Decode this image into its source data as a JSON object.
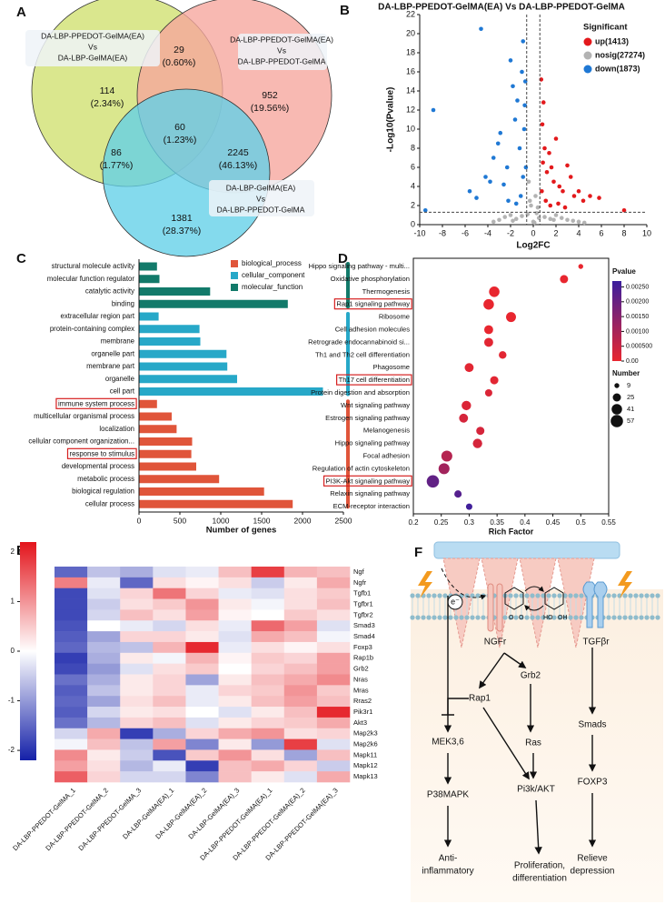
{
  "chart_data": [
    {
      "type": "venn",
      "panel": "A",
      "sets": [
        {
          "label": [
            "DA-LBP-PPEDOT-GelMA(EA)",
            "Vs",
            "DA-LBP-GelMA(EA)"
          ],
          "color": "#cfe06e"
        },
        {
          "label": [
            "DA-LBP-PPEDOT-GelMA(EA)",
            "Vs",
            "DA-LBP-PPEDOT-GelMA"
          ],
          "color": "#f6a59c"
        },
        {
          "label": [
            "DA-LBP-GelMA(EA)",
            "Vs",
            "DA-LBP-PPEDOT-GelMA"
          ],
          "color": "#62cfe8"
        }
      ],
      "values": [
        114,
        29,
        952,
        60,
        86,
        2245,
        1381
      ],
      "percents": [
        2.34,
        0.6,
        19.56,
        1.23,
        1.77,
        46.13,
        28.37
      ],
      "percent_labels": [
        "(2.34%)",
        "(0.60%)",
        "(19.56%)",
        "(1.23%)",
        "(1.77%)",
        "(46.13%)",
        "(28.37%)"
      ]
    },
    {
      "type": "scatter",
      "panel": "B",
      "title": "DA-LBP-PPEDOT-GelMA(EA) Vs DA-LBP-PPEDOT-GelMA",
      "x_label": "Log2FC",
      "y_label": "-Log10(Pvalue)",
      "xlim": [
        -10,
        10
      ],
      "xticks": [
        -10,
        -8,
        -6,
        -4,
        -2,
        0,
        2,
        4,
        6,
        8,
        10
      ],
      "ylim": [
        0,
        22
      ],
      "yticks": [
        0,
        2,
        4,
        6,
        8,
        10,
        12,
        14,
        16,
        18,
        20,
        22
      ],
      "thresholds": {
        "x": [
          -0.58,
          0.58
        ],
        "y": 1.3
      },
      "legend_title": "Significant",
      "series": [
        {
          "name": "up(1413)",
          "color": "#e3191c",
          "x": [
            0.7,
            0.8,
            0.9,
            1.0,
            1.2,
            1.4,
            1.6,
            1.8,
            2.0,
            2.3,
            2.6,
            3.0,
            3.3,
            3.6,
            4.0,
            4.4,
            5.0,
            5.8,
            8.0,
            0.75,
            1.1,
            1.5,
            2.2,
            2.8,
            0.85
          ],
          "values": [
            15.2,
            10.5,
            12.8,
            8.0,
            5.5,
            7.5,
            6.0,
            4.5,
            9.0,
            4.0,
            3.5,
            6.2,
            5.0,
            3.0,
            3.5,
            2.5,
            3.0,
            2.8,
            1.5,
            3.5,
            2.5,
            2.0,
            2.2,
            1.8,
            6.5
          ]
        },
        {
          "name": "nosig(27274)",
          "color": "#b3b3b3",
          "x": [
            -3.0,
            -2.5,
            -2.0,
            -1.5,
            -1.0,
            -0.5,
            -0.3,
            0,
            0.2,
            0.4,
            0.5,
            1.0,
            1.5,
            2.0,
            2.5,
            3.0,
            3.5,
            4.0,
            -0.4,
            0.3,
            -0.2,
            0.1,
            -1.8,
            1.8,
            -3.5,
            4.5
          ],
          "values": [
            0.5,
            0.8,
            1.0,
            0.6,
            0.9,
            1.1,
            2.5,
            0.3,
            3.0,
            1.8,
            0.7,
            0.8,
            0.6,
            1.0,
            0.7,
            0.5,
            0.4,
            0.3,
            4.5,
            1.2,
            2.0,
            0.2,
            0.4,
            0.5,
            0.3,
            0.2
          ]
        },
        {
          "name": "down(1873)",
          "color": "#1f78d4",
          "x": [
            -9.5,
            -8.8,
            -5.6,
            -5.0,
            -4.6,
            -4.2,
            -3.8,
            -3.5,
            -3.1,
            -2.9,
            -2.6,
            -2.3,
            -2.0,
            -1.8,
            -1.6,
            -1.4,
            -1.2,
            -1.0,
            -0.9,
            -0.8,
            -0.7,
            -0.65,
            -1.1,
            -1.5,
            -2.2,
            -0.75,
            -0.9
          ],
          "values": [
            1.5,
            12.0,
            3.5,
            2.8,
            20.5,
            5.0,
            4.5,
            7.0,
            8.5,
            9.6,
            4.2,
            6.0,
            17.2,
            14.5,
            11.0,
            13.0,
            8.0,
            16.0,
            19.2,
            10.0,
            15.0,
            6.0,
            3.0,
            2.2,
            2.5,
            12.5,
            5.0
          ]
        }
      ]
    },
    {
      "type": "bar",
      "orientation": "horizontal",
      "panel": "C",
      "categories": [
        "structural molecule activity",
        "molecular function regulator",
        "catalytic activity",
        "binding",
        "extracellular region part",
        "protein-containing complex",
        "membrane",
        "organelle part",
        "membrane part",
        "organelle",
        "cell part",
        "immune system process",
        "multicellular organismal process",
        "localization",
        "cellular component organization...",
        "response to stimulus",
        "developmental process",
        "metabolic process",
        "biological regulation",
        "cellular process"
      ],
      "values": [
        220,
        250,
        870,
        1820,
        240,
        740,
        750,
        1070,
        1080,
        1200,
        2250,
        220,
        400,
        460,
        650,
        640,
        700,
        980,
        1530,
        1880
      ],
      "group": [
        2,
        2,
        2,
        2,
        1,
        1,
        1,
        1,
        1,
        1,
        1,
        0,
        0,
        0,
        0,
        0,
        0,
        0,
        0,
        0
      ],
      "groups": [
        {
          "name": "biological_process",
          "color": "#e0553a"
        },
        {
          "name": "cellular_component",
          "color": "#27a8c8"
        },
        {
          "name": "molecular_function",
          "color": "#127a6a"
        }
      ],
      "highlighted": [
        11,
        15
      ],
      "x_label": "Number of genes",
      "xlim": [
        0,
        2500
      ],
      "xticks": [
        0,
        500,
        1000,
        1500,
        2000,
        2500
      ]
    },
    {
      "type": "bubble",
      "panel": "D",
      "categories": [
        "Hippo signaling pathway - multi...",
        "Oxidative phosphorylation",
        "Thermogenesis",
        "Rap1 signaling pathway",
        "Ribosome",
        "Cell adhesion molecules",
        "Retrograde endocannabinoid si...",
        "Th1 and Th2 cell differentiation",
        "Phagosome",
        "Th17 cell differentiation",
        "Protein digestion and absorption",
        "Wnt signaling pathway",
        "Estrogen signaling pathway",
        "Melanogenesis",
        "Hippo signaling pathway",
        "Focal adhesion",
        "Regulation of actin cytoskeleton",
        "PI3K-Akt signaling pathway",
        "Relaxin signaling pathway",
        "ECM-receptor interaction"
      ],
      "x": [
        0.5,
        0.47,
        0.345,
        0.335,
        0.375,
        0.335,
        0.335,
        0.36,
        0.3,
        0.345,
        0.335,
        0.295,
        0.29,
        0.32,
        0.315,
        0.26,
        0.255,
        0.235,
        0.28,
        0.3
      ],
      "pvalues": [
        0,
        0,
        0,
        0,
        0,
        0,
        0.0001,
        0.0001,
        0.0001,
        0.0001,
        0.0002,
        0.0002,
        0.0003,
        0.0003,
        0.0003,
        0.0008,
        0.0011,
        0.0021,
        0.0023,
        0.0026
      ],
      "sizes": [
        9,
        25,
        41,
        41,
        37,
        30,
        30,
        22,
        30,
        25,
        20,
        33,
        30,
        25,
        33,
        45,
        45,
        57,
        20,
        15
      ],
      "highlighted": [
        3,
        9,
        17
      ],
      "x_label": "Rich Factor",
      "xlim": [
        0.2,
        0.55
      ],
      "xticks": [
        0.2,
        0.25,
        0.3,
        0.35,
        0.4,
        0.45,
        0.5,
        0.55
      ],
      "color_title": "Pvalue",
      "clim": [
        0,
        0.0027
      ],
      "colors": [
        "#e8262f",
        "#3b1f9e"
      ],
      "cticks": [
        {
          "value": 0.0025,
          "label": "0.00250"
        },
        {
          "value": 0.002,
          "label": "0.00200"
        },
        {
          "value": 0.0015,
          "label": "0.00150"
        },
        {
          "value": 0.001,
          "label": "0.00100"
        },
        {
          "value": 0.0005,
          "label": "0.000500"
        },
        {
          "value": 0,
          "label": "0.00"
        }
      ],
      "size_title": "Number",
      "size_ticks": [
        9,
        25,
        41,
        57
      ]
    },
    {
      "type": "heatmap",
      "panel": "E",
      "rows": [
        "Ngf",
        "Ngfr",
        "Tgfb1",
        "Tgfbr1",
        "Tgfbr2",
        "Smad3",
        "Smad4",
        "Foxp3",
        "Rap1b",
        "Grb2",
        "Nras",
        "Mras",
        "Rras2",
        "Pik3r1",
        "Akt3",
        "Map2k3",
        "Map2k6",
        "Mapk11",
        "Mapk12",
        "Mapk13"
      ],
      "columns": [
        "DA-LBP-PPEDOT-GelMA_1",
        "DA-LBP-PPEDOT-GelMA_2",
        "DA-LBP-PPEDOT-GelMA_3",
        "DA-LBP-GelMA(EA)_1",
        "DA-LBP-GelMA(EA)_2",
        "DA-LBP-GelMA(EA)_3",
        "DA-LBP-PPEDOT-GelMA(EA)_1",
        "DA-LBP-PPEDOT-GelMA(EA)_2",
        "DA-LBP-PPEDOT-GelMA(EA)_3"
      ],
      "values": [
        [
          -1.5,
          -0.6,
          -0.8,
          -0.3,
          -0.2,
          0.6,
          1.8,
          0.7,
          0.6
        ],
        [
          1.2,
          -0.2,
          -1.5,
          0.3,
          0.1,
          0.3,
          -0.5,
          0.2,
          0.8
        ],
        [
          -1.8,
          -0.3,
          0.4,
          1.3,
          0.4,
          -0.2,
          -0.3,
          0.3,
          0.5
        ],
        [
          -1.8,
          -0.5,
          0.3,
          0.5,
          1.0,
          0.2,
          -0.1,
          0.3,
          0.6
        ],
        [
          -1.8,
          -0.4,
          0.6,
          0.3,
          0.9,
          0.1,
          0.0,
          0.5,
          0.3
        ],
        [
          -1.7,
          0.0,
          -0.2,
          -0.4,
          0.3,
          -0.2,
          1.4,
          0.9,
          -0.3
        ],
        [
          -1.6,
          -0.9,
          0.4,
          0.4,
          0.2,
          -0.3,
          0.8,
          0.6,
          -0.1
        ],
        [
          -1.5,
          -0.7,
          -0.6,
          0.7,
          2.0,
          -0.2,
          0.3,
          0.1,
          0.3
        ],
        [
          -1.9,
          -0.8,
          0.2,
          -0.1,
          0.7,
          0.1,
          0.5,
          0.4,
          0.9
        ],
        [
          -1.8,
          -1.0,
          -0.3,
          0.3,
          0.5,
          0.0,
          0.4,
          0.6,
          0.9
        ],
        [
          -1.4,
          -0.8,
          0.2,
          0.4,
          -0.9,
          0.2,
          0.6,
          0.8,
          1.1
        ],
        [
          -1.6,
          -0.6,
          0.2,
          0.4,
          -0.2,
          0.4,
          0.5,
          1.0,
          0.5
        ],
        [
          -1.5,
          -0.9,
          0.3,
          0.6,
          -0.2,
          0.2,
          0.6,
          0.9,
          0.6
        ],
        [
          -1.6,
          -0.4,
          0.2,
          0.3,
          0.0,
          -0.3,
          0.2,
          0.6,
          2.0
        ],
        [
          -1.4,
          -0.7,
          0.4,
          0.6,
          -0.3,
          0.2,
          0.4,
          0.5,
          0.8
        ],
        [
          -0.4,
          0.8,
          -1.9,
          -0.8,
          0.4,
          0.8,
          1.0,
          0.3,
          0.4
        ],
        [
          -0.1,
          0.6,
          -0.6,
          0.9,
          -1.2,
          0.2,
          -1.0,
          1.8,
          -0.3
        ],
        [
          1.1,
          0.2,
          -0.5,
          -1.7,
          0.5,
          1.0,
          0.3,
          -0.9,
          0.6
        ],
        [
          0.9,
          0.3,
          -0.7,
          -0.2,
          -1.9,
          0.6,
          0.8,
          0.4,
          -0.5
        ],
        [
          1.5,
          0.4,
          -0.4,
          -0.4,
          -1.2,
          0.6,
          0.2,
          -0.3,
          0.8
        ]
      ],
      "clim": [
        -2.2,
        2.2
      ],
      "cticks": [
        2,
        1,
        0,
        -1,
        -2
      ],
      "colors": [
        "#1420a8",
        "#ffffff",
        "#e3141b"
      ]
    }
  ],
  "diagram": {
    "panel": "F",
    "electron": "e⁻",
    "atoms": [
      "O",
      "O",
      "HO",
      "OH"
    ],
    "nodes": [
      [
        "NGFr"
      ],
      [
        "TGFβr"
      ],
      [
        "Grb2"
      ],
      [
        "Rap1"
      ],
      [
        "Ras"
      ],
      [
        "MEK3,6"
      ],
      [
        "Smads"
      ],
      [
        "P38MAPK"
      ],
      [
        "Pi3k/AKT"
      ],
      [
        "FOXP3"
      ],
      [
        "Anti-",
        "inflammatory"
      ],
      [
        "Proliferation,",
        "differentiation"
      ],
      [
        "Relieve",
        "depression"
      ]
    ]
  }
}
